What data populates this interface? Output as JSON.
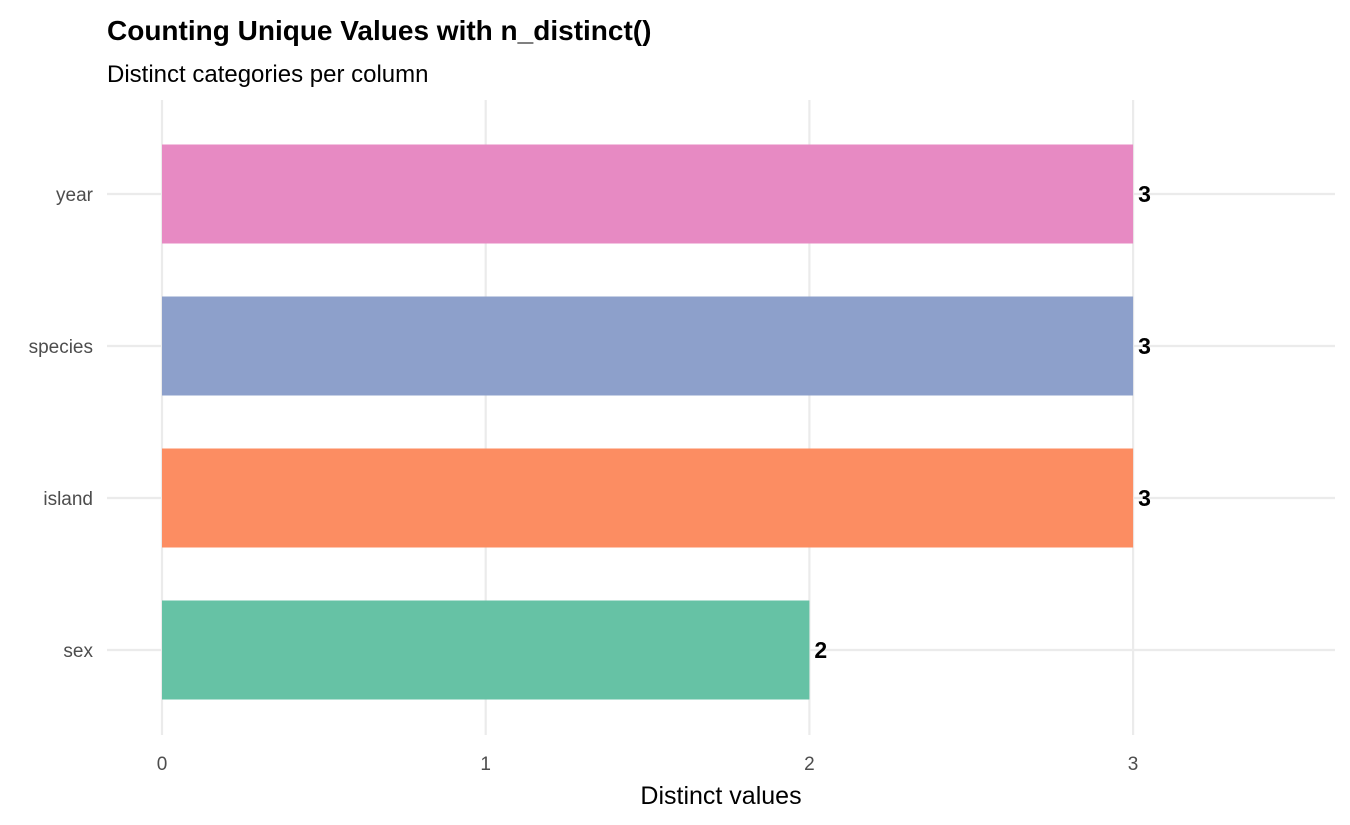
{
  "chart_data": {
    "type": "bar",
    "orientation": "horizontal",
    "title": "Counting Unique Values with n_distinct()",
    "subtitle": "Distinct categories per column",
    "xlabel": "Distinct values",
    "ylabel": "",
    "categories": [
      "sex",
      "island",
      "species",
      "year"
    ],
    "values": [
      2,
      3,
      3,
      3
    ],
    "data_labels": [
      "2",
      "3",
      "3",
      "3"
    ],
    "colors": [
      "#66C2A5",
      "#FC8D62",
      "#8DA0CB",
      "#E78AC3"
    ],
    "xticks": [
      0,
      1,
      2,
      3
    ],
    "xtick_labels": [
      "0",
      "1",
      "2",
      "3"
    ],
    "xlim": [
      0,
      3.62
    ],
    "grid": true,
    "legend": "none"
  }
}
